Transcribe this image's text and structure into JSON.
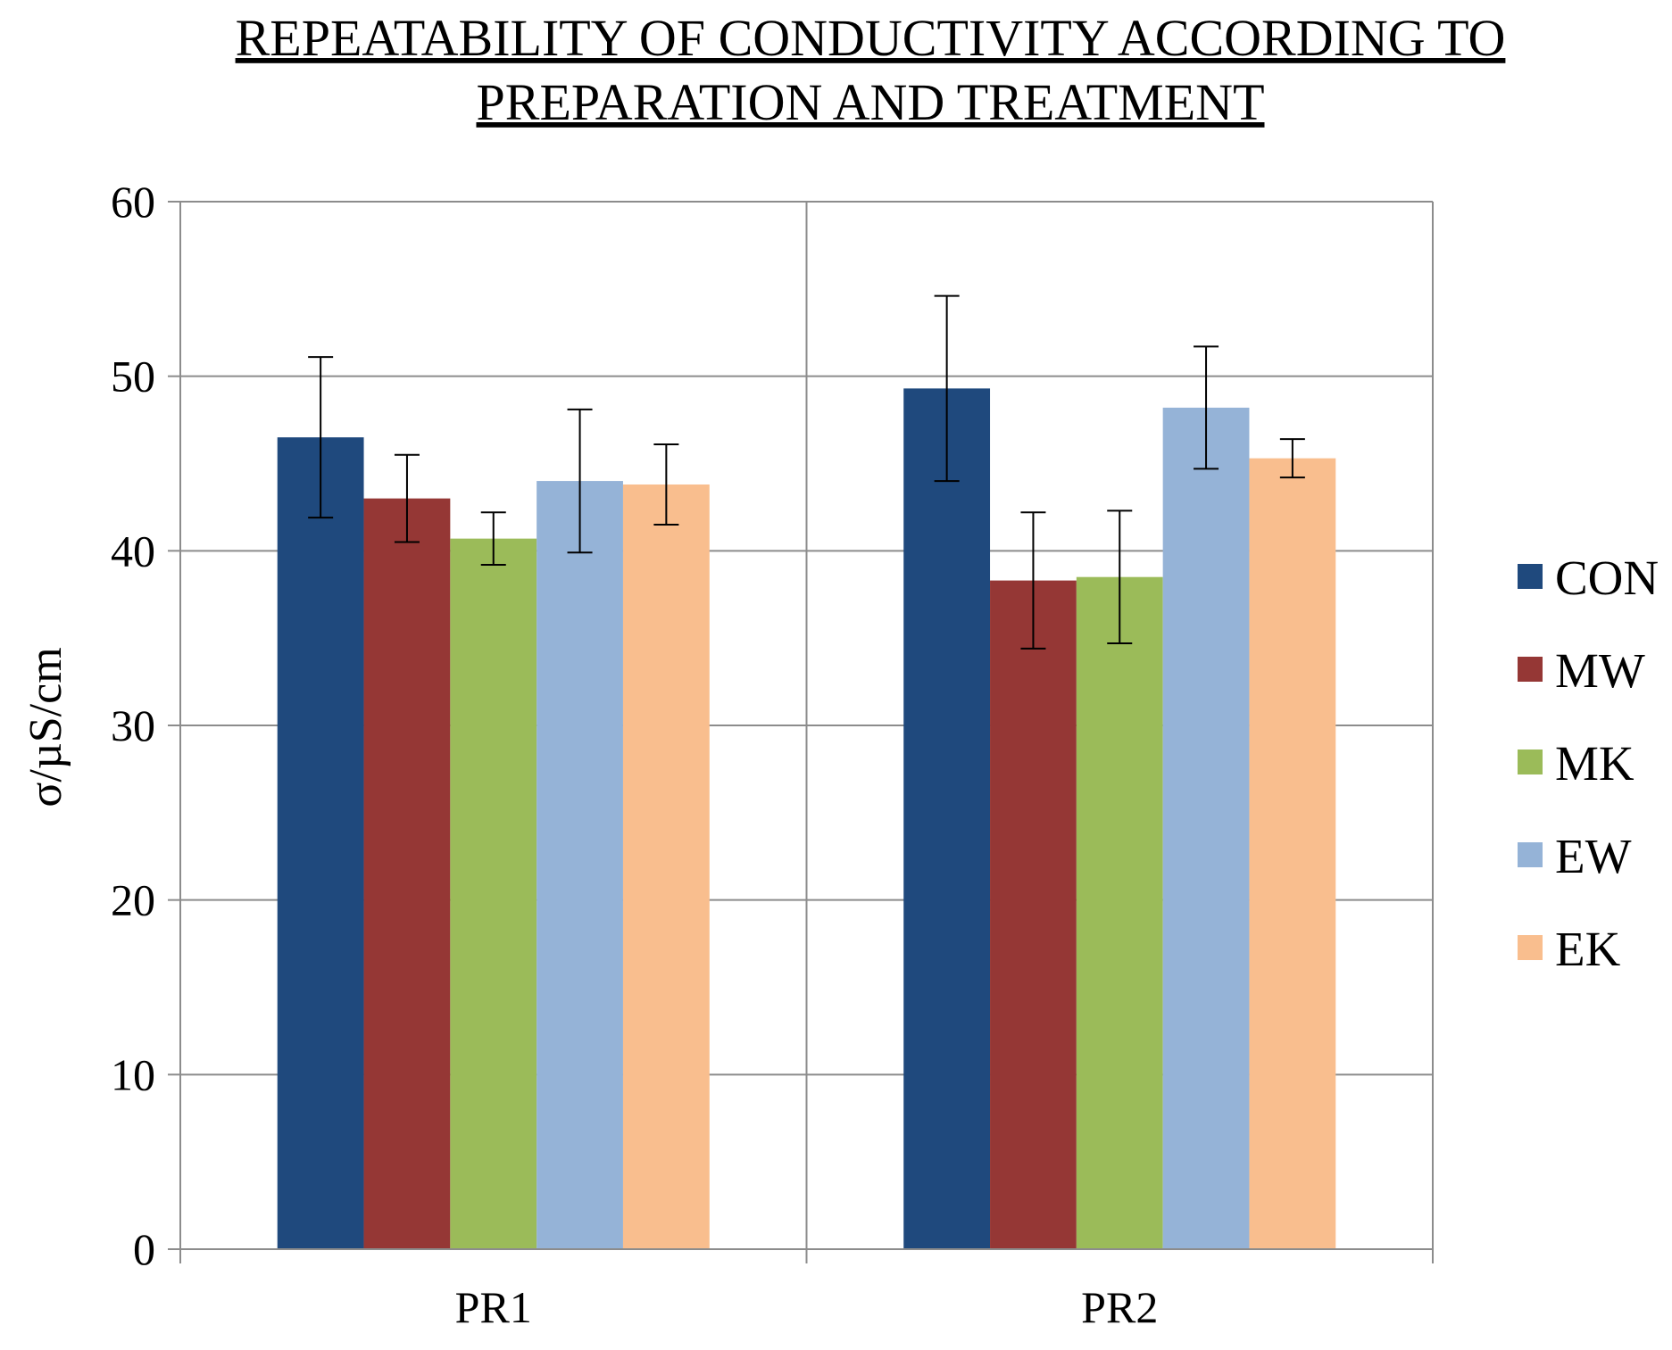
{
  "chart_data": {
    "type": "bar",
    "title_lines": [
      "REPEATABILITY OF CONDUCTIVITY ACCORDING TO",
      "PREPARATION AND TREATMENT"
    ],
    "ylabel": "σ/µS/cm",
    "xlabel": "",
    "ylim": [
      0,
      60
    ],
    "yticks": [
      0,
      10,
      20,
      30,
      40,
      50,
      60
    ],
    "grid": true,
    "legend_position": "right",
    "categories": [
      "PR1",
      "PR2"
    ],
    "series": [
      {
        "name": "CON",
        "color": "#1F497D",
        "values": [
          46.5,
          49.3
        ],
        "errors": [
          4.6,
          5.3
        ]
      },
      {
        "name": "MW",
        "color": "#953735",
        "values": [
          43.0,
          38.3
        ],
        "errors": [
          2.5,
          3.9
        ]
      },
      {
        "name": "MK",
        "color": "#9BBB59",
        "values": [
          40.7,
          38.5
        ],
        "errors": [
          1.5,
          3.8
        ]
      },
      {
        "name": "EW",
        "color": "#95B3D7",
        "values": [
          44.0,
          48.2
        ],
        "errors": [
          4.1,
          3.5
        ]
      },
      {
        "name": "EK",
        "color": "#F9BE8E",
        "values": [
          43.8,
          45.3
        ],
        "errors": [
          2.3,
          1.1
        ]
      }
    ]
  }
}
